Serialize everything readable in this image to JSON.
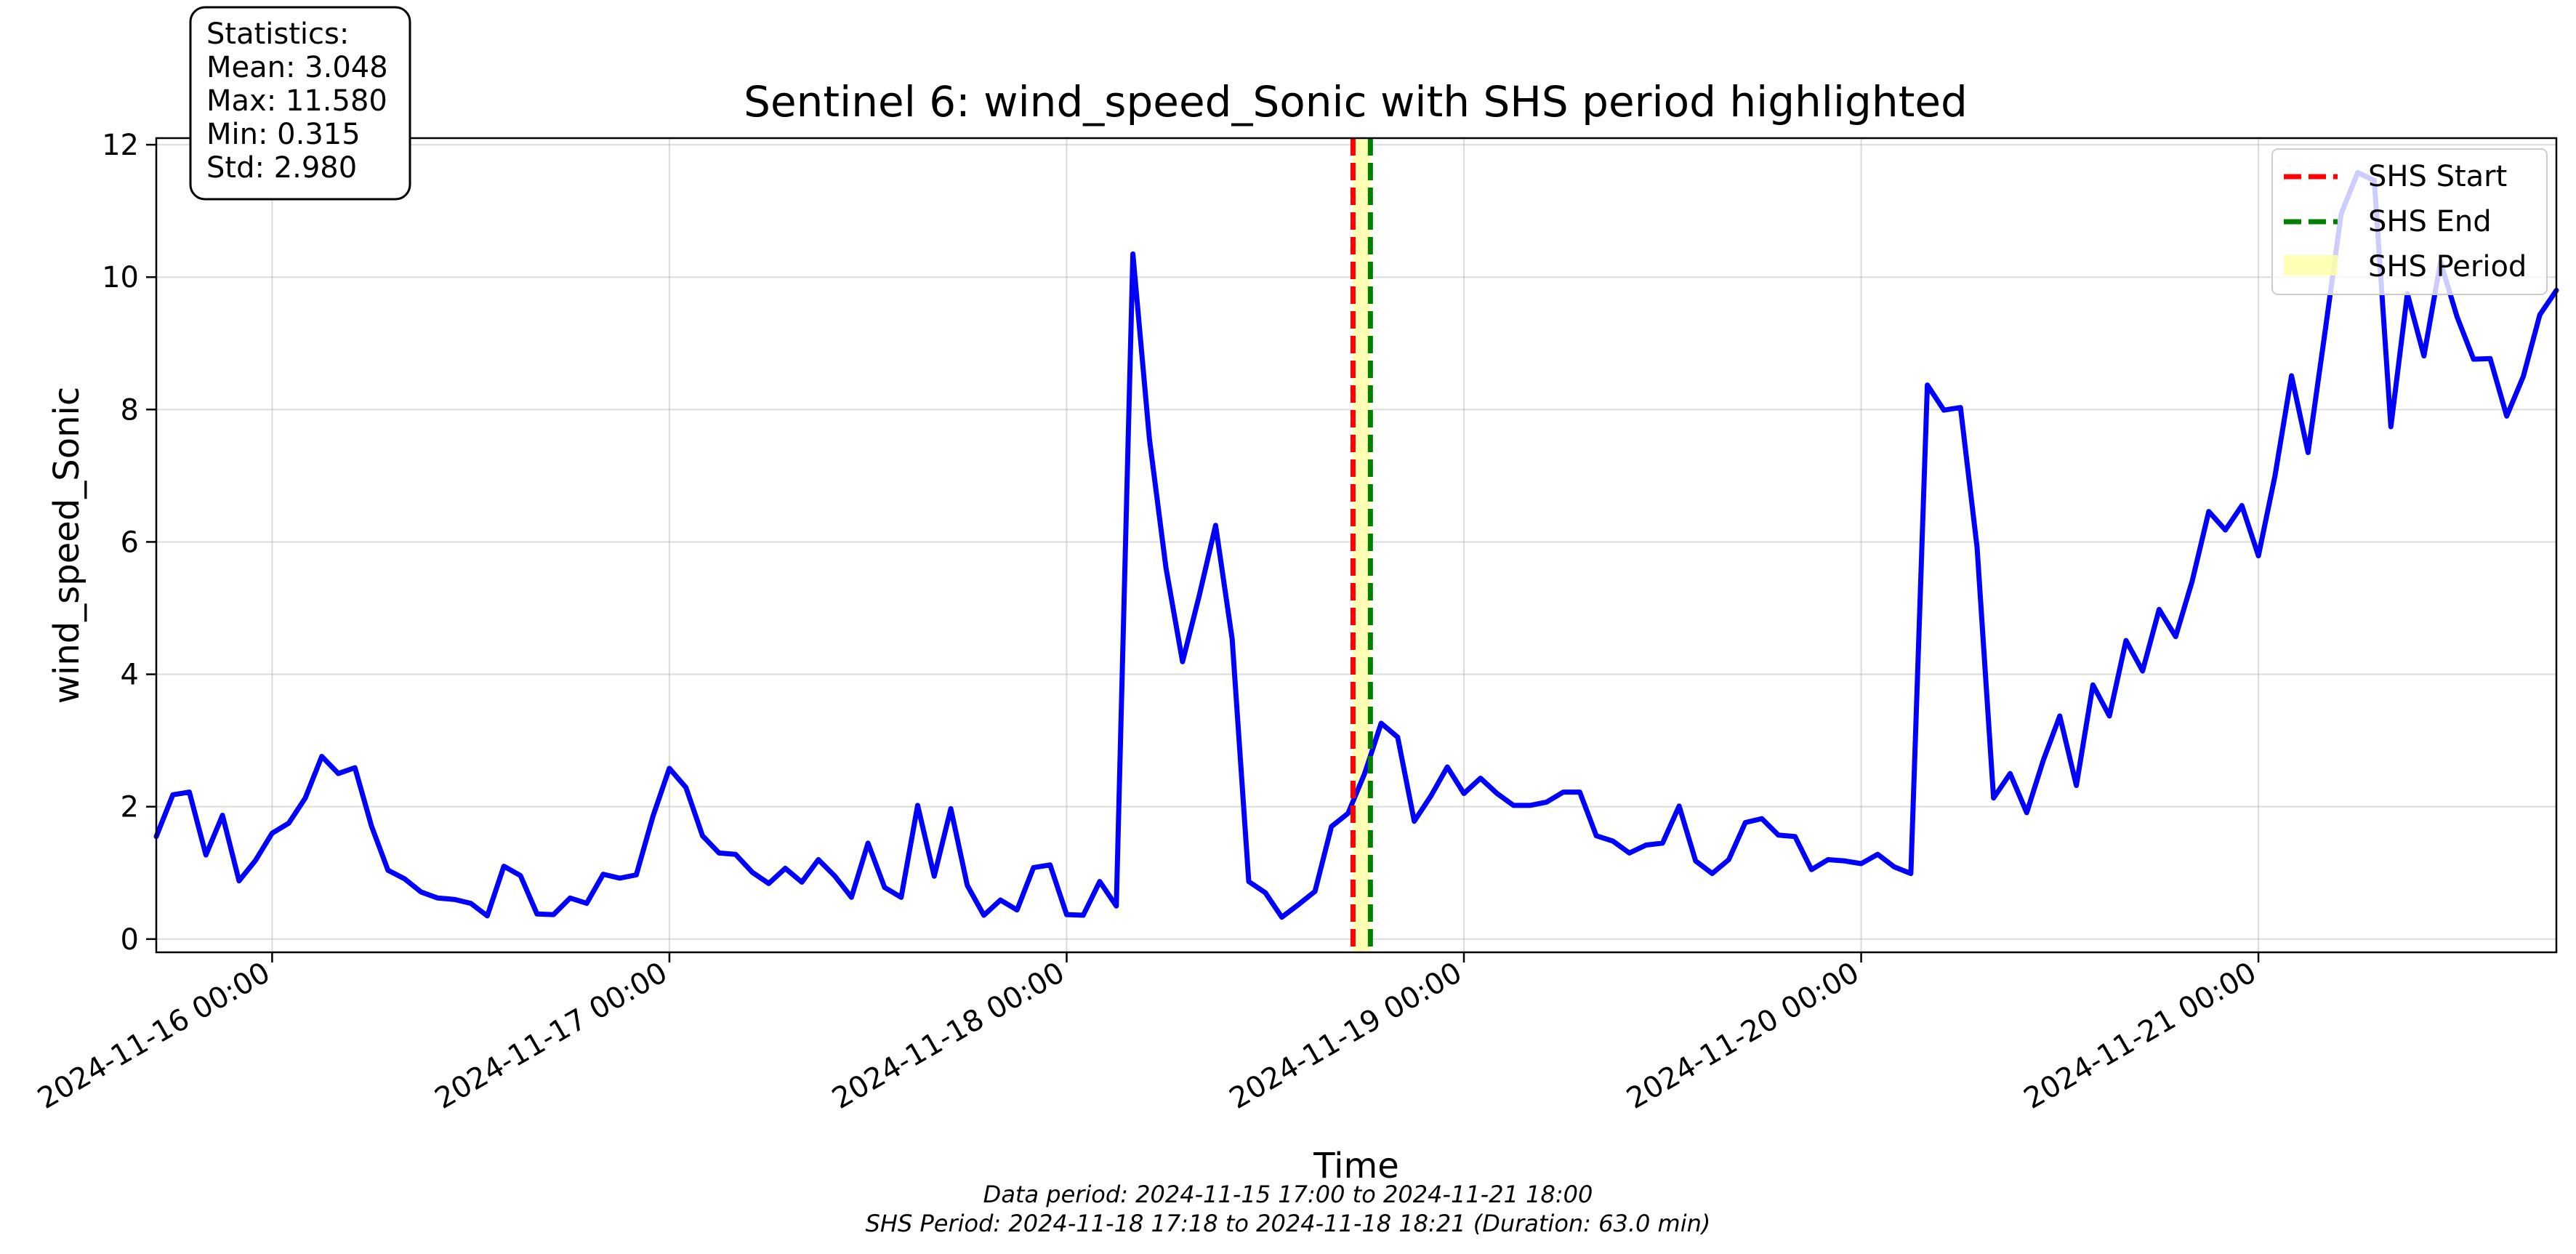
{
  "chart_data": {
    "type": "line",
    "title": "Sentinel 6: wind_speed_Sonic with SHS period highlighted",
    "xlabel": "Time",
    "ylabel": "wind_speed_Sonic",
    "xlim": [
      "2024-11-15 17:00",
      "2024-11-21 18:00"
    ],
    "ylim": [
      -0.2,
      12.1
    ],
    "y_ticks": [
      0,
      2,
      4,
      6,
      8,
      10,
      12
    ],
    "x_ticks": [
      "2024-11-16 00:00",
      "2024-11-17 00:00",
      "2024-11-18 00:00",
      "2024-11-19 00:00",
      "2024-11-20 00:00",
      "2024-11-21 00:00"
    ],
    "grid": true,
    "legend_position": "top-right",
    "series": [
      {
        "name": "",
        "color": "#0000ff",
        "x": [
          "2024-11-15 17:00",
          "2024-11-15 18:00",
          "2024-11-15 19:00",
          "2024-11-15 20:00",
          "2024-11-15 21:00",
          "2024-11-15 22:00",
          "2024-11-15 23:00",
          "2024-11-16 00:00",
          "2024-11-16 01:00",
          "2024-11-16 02:00",
          "2024-11-16 03:00",
          "2024-11-16 04:00",
          "2024-11-16 05:00",
          "2024-11-16 06:00",
          "2024-11-16 07:00",
          "2024-11-16 08:00",
          "2024-11-16 09:00",
          "2024-11-16 10:00",
          "2024-11-16 11:00",
          "2024-11-16 12:00",
          "2024-11-16 13:00",
          "2024-11-16 14:00",
          "2024-11-16 15:00",
          "2024-11-16 16:00",
          "2024-11-16 17:00",
          "2024-11-16 18:00",
          "2024-11-16 19:00",
          "2024-11-16 20:00",
          "2024-11-16 21:00",
          "2024-11-16 22:00",
          "2024-11-16 23:00",
          "2024-11-17 00:00",
          "2024-11-17 01:00",
          "2024-11-17 02:00",
          "2024-11-17 03:00",
          "2024-11-17 04:00",
          "2024-11-17 05:00",
          "2024-11-17 06:00",
          "2024-11-17 07:00",
          "2024-11-17 08:00",
          "2024-11-17 09:00",
          "2024-11-17 10:00",
          "2024-11-17 11:00",
          "2024-11-17 12:00",
          "2024-11-17 13:00",
          "2024-11-17 14:00",
          "2024-11-17 15:00",
          "2024-11-17 16:00",
          "2024-11-17 17:00",
          "2024-11-17 18:00",
          "2024-11-17 19:00",
          "2024-11-17 20:00",
          "2024-11-17 21:00",
          "2024-11-17 22:00",
          "2024-11-17 23:00",
          "2024-11-18 00:00",
          "2024-11-18 01:00",
          "2024-11-18 02:00",
          "2024-11-18 03:00",
          "2024-11-18 04:00",
          "2024-11-18 05:00",
          "2024-11-18 06:00",
          "2024-11-18 07:00",
          "2024-11-18 08:00",
          "2024-11-18 09:00",
          "2024-11-18 10:00",
          "2024-11-18 11:00",
          "2024-11-18 12:00",
          "2024-11-18 13:00",
          "2024-11-18 14:00",
          "2024-11-18 15:00",
          "2024-11-18 16:00",
          "2024-11-18 17:00",
          "2024-11-18 18:00",
          "2024-11-18 19:00",
          "2024-11-18 20:00",
          "2024-11-18 21:00",
          "2024-11-18 22:00",
          "2024-11-18 23:00",
          "2024-11-19 00:00",
          "2024-11-19 01:00",
          "2024-11-19 02:00",
          "2024-11-19 03:00",
          "2024-11-19 04:00",
          "2024-11-19 05:00",
          "2024-11-19 06:00",
          "2024-11-19 07:00",
          "2024-11-19 08:00",
          "2024-11-19 09:00",
          "2024-11-19 10:00",
          "2024-11-19 11:00",
          "2024-11-19 12:00",
          "2024-11-19 13:00",
          "2024-11-19 14:00",
          "2024-11-19 15:00",
          "2024-11-19 16:00",
          "2024-11-19 17:00",
          "2024-11-19 18:00",
          "2024-11-19 19:00",
          "2024-11-19 20:00",
          "2024-11-19 21:00",
          "2024-11-19 22:00",
          "2024-11-19 23:00",
          "2024-11-20 00:00",
          "2024-11-20 01:00",
          "2024-11-20 02:00",
          "2024-11-20 03:00",
          "2024-11-20 04:00",
          "2024-11-20 05:00",
          "2024-11-20 06:00",
          "2024-11-20 07:00",
          "2024-11-20 08:00",
          "2024-11-20 09:00",
          "2024-11-20 10:00",
          "2024-11-20 11:00",
          "2024-11-20 12:00",
          "2024-11-20 13:00",
          "2024-11-20 14:00",
          "2024-11-20 15:00",
          "2024-11-20 16:00",
          "2024-11-20 17:00",
          "2024-11-20 18:00",
          "2024-11-20 19:00",
          "2024-11-20 20:00",
          "2024-11-20 21:00",
          "2024-11-20 22:00",
          "2024-11-20 23:00",
          "2024-11-21 00:00",
          "2024-11-21 01:00",
          "2024-11-21 02:00",
          "2024-11-21 03:00",
          "2024-11-21 04:00",
          "2024-11-21 05:00",
          "2024-11-21 06:00",
          "2024-11-21 07:00",
          "2024-11-21 08:00",
          "2024-11-21 09:00",
          "2024-11-21 10:00",
          "2024-11-21 11:00",
          "2024-11-21 12:00",
          "2024-11-21 13:00",
          "2024-11-21 14:00",
          "2024-11-21 15:00",
          "2024-11-21 16:00",
          "2024-11-21 17:00",
          "2024-11-21 18:00"
        ],
        "y": [
          1.55,
          2.18,
          2.22,
          1.27,
          1.87,
          0.88,
          1.19,
          1.6,
          1.75,
          2.13,
          2.76,
          2.5,
          2.59,
          1.71,
          1.04,
          0.91,
          0.71,
          0.62,
          0.6,
          0.54,
          0.35,
          1.1,
          0.96,
          0.38,
          0.37,
          0.62,
          0.54,
          0.98,
          0.92,
          0.97,
          1.85,
          2.58,
          2.29,
          1.56,
          1.3,
          1.28,
          1.01,
          0.84,
          1.07,
          0.86,
          1.2,
          0.95,
          0.63,
          1.45,
          0.78,
          0.63,
          2.02,
          0.95,
          1.97,
          0.81,
          0.36,
          0.59,
          0.44,
          1.08,
          1.12,
          0.37,
          0.36,
          0.87,
          0.5,
          10.35,
          7.56,
          5.61,
          4.19,
          5.18,
          6.25,
          4.53,
          0.87,
          0.7,
          0.33,
          0.52,
          0.72,
          1.7,
          1.9,
          2.5,
          3.26,
          3.05,
          1.78,
          2.16,
          2.6,
          2.2,
          2.43,
          2.2,
          2.02,
          2.02,
          2.07,
          2.22,
          2.22,
          1.56,
          1.48,
          1.3,
          1.42,
          1.45,
          2.01,
          1.18,
          0.99,
          1.2,
          1.76,
          1.82,
          1.57,
          1.55,
          1.05,
          1.2,
          1.18,
          1.14,
          1.28,
          1.09,
          0.99,
          8.37,
          7.99,
          8.03,
          5.92,
          2.13,
          2.5,
          1.91,
          2.7,
          3.37,
          2.32,
          3.84,
          3.37,
          4.51,
          4.05,
          4.98,
          4.57,
          5.41,
          6.46,
          6.18,
          6.55,
          5.79,
          7.0,
          8.51,
          7.35,
          9.13,
          10.96,
          11.58,
          11.46,
          7.74,
          9.75,
          8.81,
          10.23,
          9.4,
          8.76,
          8.77,
          7.9,
          8.5,
          9.43,
          9.8
        ]
      }
    ],
    "vlines": [
      {
        "label": "SHS Start",
        "x": "2024-11-18 17:18",
        "color": "#ff0000",
        "style": "dashed"
      },
      {
        "label": "SHS End",
        "x": "2024-11-18 18:21",
        "color": "#008000",
        "style": "dashed"
      }
    ],
    "span": {
      "label": "SHS Period",
      "start": "2024-11-18 17:18",
      "end": "2024-11-18 18:21",
      "color": "#ffffa8"
    },
    "stats_box": [
      "Statistics:",
      "Mean: 3.048",
      "Max: 11.580",
      "Min: 0.315",
      "Std: 2.980"
    ],
    "footnotes": [
      "Data period: 2024-11-15 17:00 to 2024-11-21 18:00",
      "SHS Period: 2024-11-18 17:18 to 2024-11-18 18:21 (Duration: 63.0 min)"
    ]
  }
}
